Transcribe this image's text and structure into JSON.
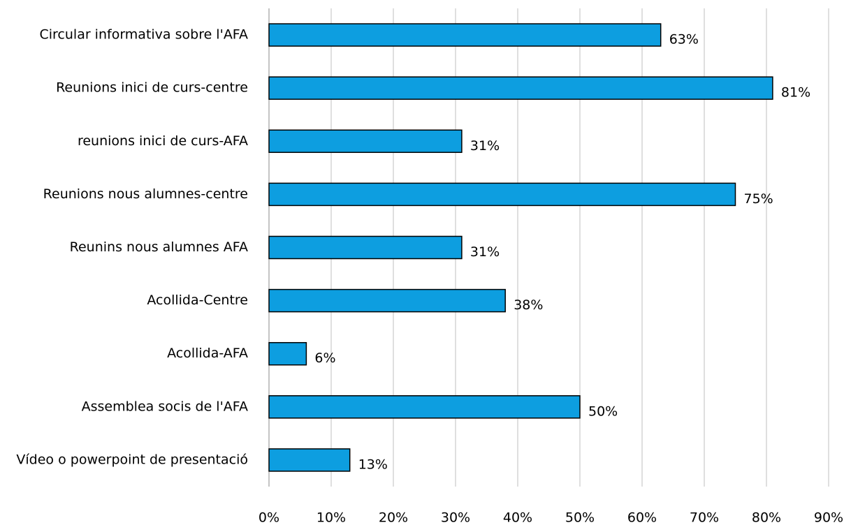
{
  "chart_data": {
    "type": "barh",
    "categories": [
      "Circular informativa sobre l'AFA",
      "Reunions inici de curs-centre",
      "reunions inici de curs-AFA",
      "Reunions nous alumnes-centre",
      "Reunins nous alumnes AFA",
      "Acollida-Centre",
      "Acollida-AFA",
      "Assemblea socis de l'AFA",
      "Vídeo o powerpoint de presentació"
    ],
    "values": [
      63,
      81,
      31,
      75,
      31,
      38,
      6,
      50,
      13
    ],
    "value_labels": [
      "63%",
      "81%",
      "31%",
      "75%",
      "31%",
      "38%",
      "6%",
      "50%",
      "13%"
    ],
    "color": "#0d9ee0",
    "xlim": [
      0,
      90
    ],
    "xticks": [
      {
        "value": 0,
        "label": "0%"
      },
      {
        "value": 10,
        "label": "10%"
      },
      {
        "value": 20,
        "label": "20%"
      },
      {
        "value": 30,
        "label": "30%"
      },
      {
        "value": 40,
        "label": "40%"
      },
      {
        "value": 50,
        "label": "50%"
      },
      {
        "value": 60,
        "label": "60%"
      },
      {
        "value": 70,
        "label": "70%"
      },
      {
        "value": 80,
        "label": "80%"
      },
      {
        "value": 90,
        "label": "90%"
      }
    ],
    "grid": true
  }
}
